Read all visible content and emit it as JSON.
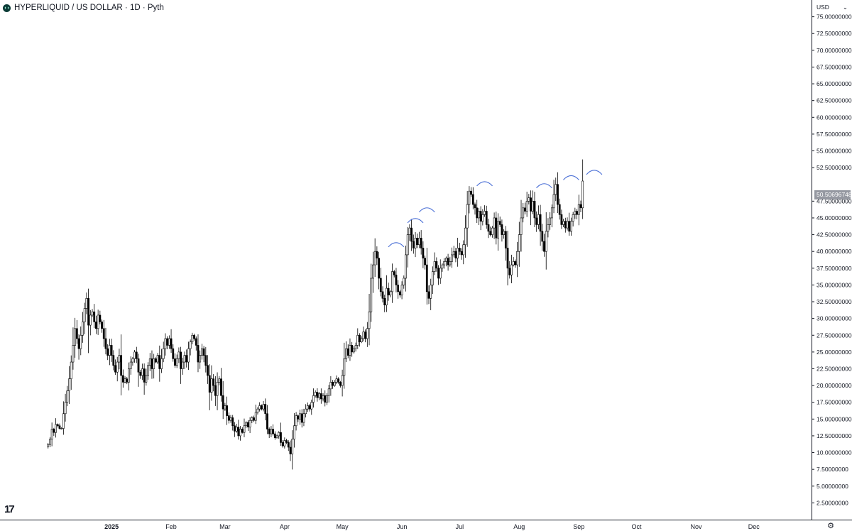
{
  "header": {
    "symbol": "HYPERLIQUID / US DOLLAR · 1D · Pyth",
    "logo_glyph": "◖◗"
  },
  "currency": {
    "label": "USD",
    "chevron": "⌄"
  },
  "current_price": "50.50696748",
  "settings_glyph": "⚙",
  "brand_glyph": "17",
  "colors": {
    "up": "#ffffff",
    "down": "#000000",
    "outline": "#000000",
    "annotation": "#4a6fd6",
    "axis_line": "#131722",
    "price_tag": "#9598a1"
  },
  "chart_data": {
    "type": "candlestick",
    "title": "HYPERLIQUID / US DOLLAR · 1D · Pyth",
    "y_ticks": [
      "2.50000000",
      "5.00000000",
      "7.50000000",
      "10.00000000",
      "12.50000000",
      "15.00000000",
      "17.50000000",
      "20.00000000",
      "22.50000000",
      "25.00000000",
      "27.50000000",
      "30.00000000",
      "32.50000000",
      "35.00000000",
      "37.50000000",
      "40.00000000",
      "42.50000000",
      "45.00000000",
      "47.50000000",
      "52.50000000",
      "55.00000000",
      "57.50000000",
      "60.00000000",
      "62.50000000",
      "65.00000000",
      "67.50000000",
      "70.00000000",
      "72.50000000",
      "75.00000000"
    ],
    "ylim": [
      0,
      77.5
    ],
    "x_ticks": [
      "2025",
      "Feb",
      "Mar",
      "Apr",
      "May",
      "Jun",
      "Jul",
      "Aug",
      "Sep",
      "Oct",
      "Nov",
      "Dec"
    ],
    "x_tick_dates": [
      "2025-01-01",
      "2025-02-01",
      "2025-03-01",
      "2025-04-01",
      "2025-05-01",
      "2025-06-01",
      "2025-07-01",
      "2025-08-01",
      "2025-09-01",
      "2025-10-01",
      "2025-11-01",
      "2025-12-01"
    ],
    "x_range": [
      "2024-11-04",
      "2025-12-31"
    ],
    "start_date": "2024-11-29",
    "closes": [
      11.2,
      12.0,
      13.5,
      13.0,
      14.2,
      14.0,
      13.6,
      13.6,
      15.8,
      17.5,
      19.2,
      21.0,
      23.5,
      26.0,
      28.5,
      27.0,
      25.5,
      27.5,
      29.5,
      31.5,
      33.0,
      29.0,
      30.5,
      31.0,
      29.5,
      28.5,
      30.5,
      29.5,
      28.5,
      27.0,
      25.5,
      24.5,
      26.0,
      24.5,
      23.0,
      22.0,
      23.5,
      24.5,
      21.5,
      20.5,
      21.0,
      20.5,
      22.5,
      23.5,
      24.0,
      25.0,
      24.0,
      22.0,
      21.5,
      22.5,
      20.5,
      21.5,
      23.0,
      24.0,
      22.5,
      24.0,
      23.5,
      24.5,
      22.5,
      24.0,
      25.5,
      27.0,
      26.0,
      27.0,
      25.5,
      24.0,
      23.0,
      24.0,
      25.0,
      22.5,
      23.5,
      24.5,
      23.5,
      25.5,
      26.5,
      27.5,
      27.0,
      26.0,
      23.5,
      24.5,
      25.5,
      24.5,
      23.0,
      21.5,
      19.0,
      21.0,
      20.0,
      18.5,
      20.5,
      21.0,
      18.5,
      16.5,
      17.0,
      15.5,
      14.8,
      15.2,
      14.0,
      13.2,
      13.8,
      12.5,
      13.5,
      13.0,
      14.0,
      14.5,
      13.8,
      14.8,
      15.2,
      14.8,
      16.0,
      16.5,
      17.0,
      16.5,
      17.2,
      15.8,
      13.5,
      12.8,
      13.5,
      12.8,
      12.2,
      12.5,
      13.0,
      11.5,
      11.0,
      11.8,
      11.5,
      10.8,
      9.8,
      12.0,
      14.0,
      15.5,
      15.0,
      15.8,
      14.5,
      15.8,
      16.5,
      17.0,
      16.5,
      17.5,
      18.5,
      19.0,
      18.2,
      18.8,
      18.0,
      18.5,
      17.5,
      18.5,
      19.5,
      20.5,
      20.0,
      20.5,
      21.0,
      20.5,
      20.0,
      21.5,
      24.0,
      25.5,
      24.5,
      26.0,
      25.0,
      25.5,
      26.0,
      27.5,
      26.5,
      27.0,
      28.0,
      27.0,
      28.5,
      31.0,
      36.0,
      38.0,
      40.0,
      39.0,
      36.0,
      34.0,
      33.0,
      32.0,
      34.5,
      33.5,
      34.0,
      37.0,
      36.5,
      35.0,
      34.0,
      33.5,
      35.0,
      36.0,
      39.5,
      42.5,
      43.5,
      41.5,
      40.5,
      42.0,
      41.0,
      42.0,
      40.5,
      39.0,
      38.0,
      34.0,
      33.0,
      35.0,
      37.0,
      38.5,
      37.5,
      36.0,
      37.5,
      38.0,
      38.5,
      39.0,
      38.0,
      38.5,
      39.5,
      40.0,
      39.0,
      40.5,
      40.0,
      39.5,
      41.0,
      43.5,
      47.0,
      49.0,
      48.5,
      47.0,
      46.5,
      45.0,
      46.0,
      44.5,
      45.5,
      46.0,
      44.0,
      43.0,
      42.5,
      43.5,
      45.0,
      42.0,
      44.5,
      44.0,
      42.5,
      43.0,
      40.5,
      37.5,
      36.5,
      38.0,
      38.5,
      38.0,
      40.0,
      42.5,
      45.0,
      46.5,
      46.0,
      47.5,
      48.0,
      46.0,
      47.5,
      45.0,
      44.0,
      45.5,
      43.0,
      41.5,
      40.0,
      43.0,
      44.0,
      45.0,
      46.5,
      48.5,
      50.0,
      47.0,
      45.5,
      44.0,
      44.5,
      43.5,
      44.5,
      43.0,
      44.5,
      45.5,
      46.0,
      45.5,
      47.0,
      46.5,
      50.5
    ]
  },
  "annotations": {
    "arcs": [
      {
        "date": "2025-05-29",
        "level": 41.2
      },
      {
        "date": "2025-06-08",
        "level": 44.8
      },
      {
        "date": "2025-06-14",
        "level": 46.4
      },
      {
        "date": "2025-07-14",
        "level": 50.3
      },
      {
        "date": "2025-08-14",
        "level": 50.0
      },
      {
        "date": "2025-08-28",
        "level": 51.2
      },
      {
        "date": "2025-09-09",
        "level": 52.0
      }
    ]
  }
}
